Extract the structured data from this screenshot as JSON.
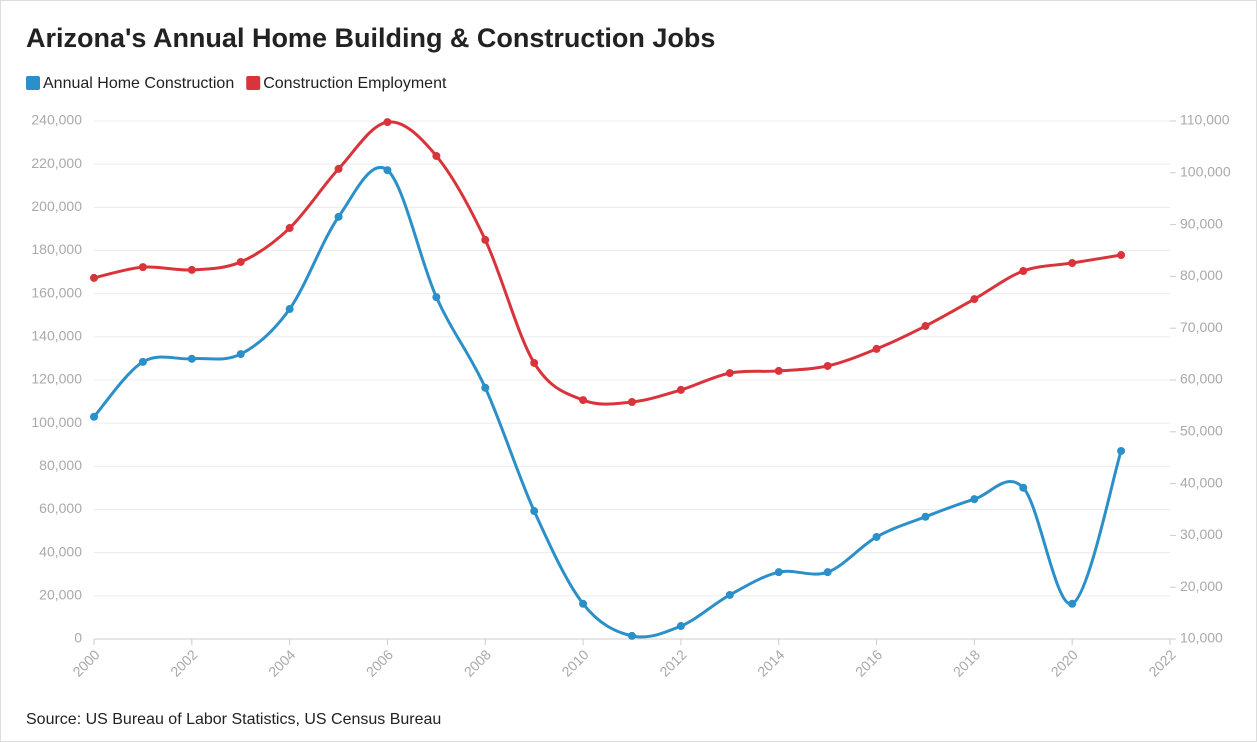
{
  "chart_data": {
    "type": "line",
    "title": "Arizona's Annual Home Building & Construction Jobs",
    "source": "Source: US Bureau of Labor Statistics, US Census Bureau",
    "x": [
      2000,
      2001,
      2002,
      2003,
      2004,
      2005,
      2006,
      2007,
      2008,
      2009,
      2010,
      2011,
      2012,
      2013,
      2014,
      2015,
      2016,
      2017,
      2018,
      2019,
      2020,
      2021
    ],
    "series": [
      {
        "name": "Annual Home Construction",
        "color": "#2b8fc9",
        "axis": "y2",
        "values": [
          52900,
          63500,
          64100,
          65000,
          73700,
          91500,
          100500,
          76000,
          58500,
          34700,
          16800,
          10600,
          12500,
          18500,
          22900,
          22900,
          29700,
          33600,
          37000,
          39200,
          16800,
          46300
        ]
      },
      {
        "name": "Construction Employment",
        "color": "#d9333b",
        "axis": "y",
        "values": [
          167300,
          172300,
          171000,
          174700,
          190400,
          217800,
          239500,
          223800,
          184900,
          127900,
          110700,
          109800,
          115400,
          123200,
          124200,
          126500,
          134400,
          145000,
          157500,
          170500,
          174200,
          177900
        ]
      }
    ],
    "xlim": [
      2000,
      2022
    ],
    "xticks": [
      2000,
      2002,
      2004,
      2006,
      2008,
      2010,
      2012,
      2014,
      2016,
      2018,
      2020,
      2022
    ],
    "ylim": [
      0,
      240000
    ],
    "yticks": [
      0,
      {
        "value": 20000,
        "label": "20,000"
      },
      {
        "value": 40000,
        "label": "40,000"
      },
      {
        "value": 60000,
        "label": "60,000"
      },
      {
        "value": 80000,
        "label": "80,000"
      },
      {
        "value": 100000,
        "label": "100,000"
      },
      {
        "value": 120000,
        "label": "120,000"
      },
      {
        "value": 140000,
        "label": "140,000"
      },
      {
        "value": 160000,
        "label": "160,000"
      },
      {
        "value": 180000,
        "label": "180,000"
      },
      {
        "value": 200000,
        "label": "200,000"
      },
      {
        "value": 220000,
        "label": "220,000"
      },
      {
        "value": 240000,
        "label": "240,000"
      }
    ],
    "y2lim": [
      10000,
      110000
    ],
    "y2ticks": [
      {
        "value": 10000,
        "label": "10,000"
      },
      {
        "value": 20000,
        "label": "20,000"
      },
      {
        "value": 30000,
        "label": "30,000"
      },
      {
        "value": 40000,
        "label": "40,000"
      },
      {
        "value": 50000,
        "label": "50,000"
      },
      {
        "value": 60000,
        "label": "60,000"
      },
      {
        "value": 70000,
        "label": "70,000"
      },
      {
        "value": 80000,
        "label": "80,000"
      },
      {
        "value": 90000,
        "label": "90,000"
      },
      {
        "value": 100000,
        "label": "100,000"
      },
      {
        "value": 110000,
        "label": "110,000"
      }
    ],
    "grid": true,
    "legend": "top-left"
  }
}
